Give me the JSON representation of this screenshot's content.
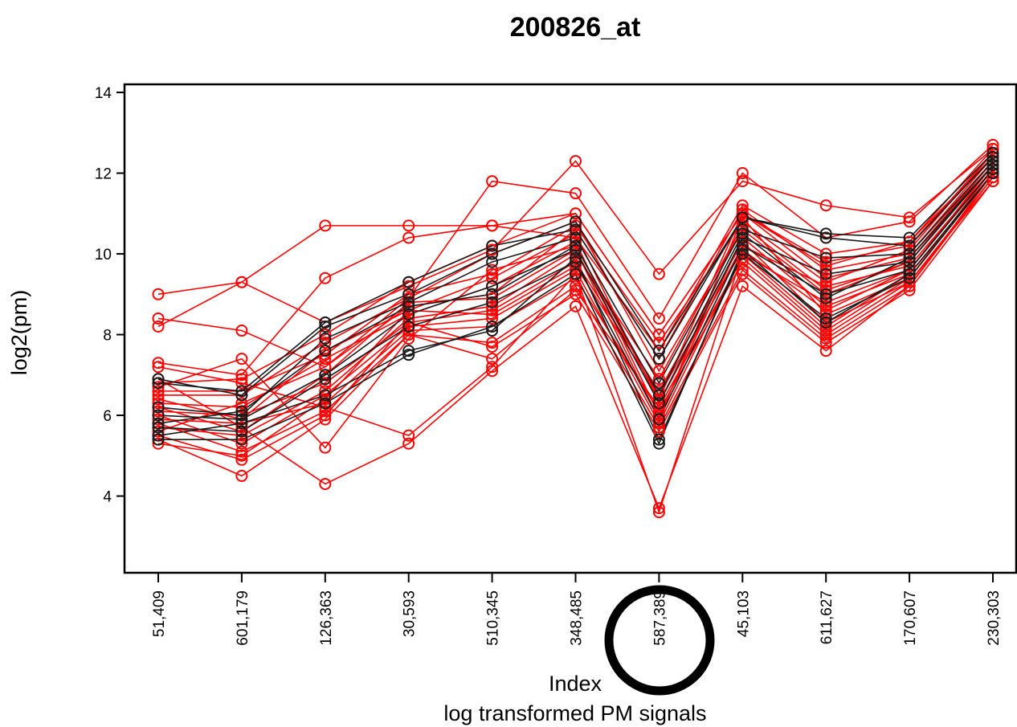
{
  "chart_data": {
    "type": "line",
    "title": "200826_at",
    "xlabel": "Index",
    "xlabel_sub": "log transformed PM signals",
    "ylabel": "log2(pm)",
    "ylim": [
      2.1,
      14.2
    ],
    "yticks": [
      4,
      6,
      8,
      10,
      12,
      14
    ],
    "categories": [
      "51,409",
      "601,179",
      "126,363",
      "30,593",
      "510,345",
      "348,485",
      "587,389",
      "45,103",
      "611,627",
      "170,607",
      "230,303"
    ],
    "highlighted_category": "587,389",
    "marker": "open-circle",
    "series_groups": [
      {
        "group": "red",
        "color": "#ff0000",
        "series": [
          {
            "values": [
              9.0,
              9.3,
              8.3,
              9.2,
              10.1,
              12.3,
              9.5,
              11.8,
              11.2,
              10.9,
              12.6
            ]
          },
          {
            "values": [
              8.4,
              8.1,
              7.2,
              8.9,
              11.8,
              11.5,
              8.4,
              12.0,
              10.4,
              10.8,
              12.7
            ]
          },
          {
            "values": [
              8.2,
              9.3,
              10.7,
              10.7,
              10.7,
              11.0,
              8.0,
              11.0,
              9.8,
              10.2,
              12.5
            ]
          },
          {
            "values": [
              7.3,
              7.0,
              9.4,
              10.4,
              10.7,
              10.4,
              7.6,
              11.2,
              10.0,
              10.3,
              12.4
            ]
          },
          {
            "values": [
              7.2,
              6.8,
              6.2,
              5.5,
              7.2,
              9.5,
              3.6,
              10.0,
              8.8,
              9.6,
              12.2
            ]
          },
          {
            "values": [
              6.9,
              5.7,
              4.3,
              5.3,
              7.1,
              8.7,
              3.7,
              9.2,
              7.6,
              9.2,
              12.0
            ]
          },
          {
            "values": [
              6.7,
              7.4,
              5.2,
              7.9,
              9.6,
              10.2,
              6.4,
              11.0,
              9.4,
              9.9,
              12.3
            ]
          },
          {
            "values": [
              6.5,
              6.5,
              7.8,
              8.9,
              10.0,
              10.8,
              7.1,
              10.6,
              9.0,
              9.8,
              12.2
            ]
          },
          {
            "values": [
              6.4,
              5.9,
              7.6,
              8.6,
              9.4,
              10.5,
              6.3,
              10.2,
              9.2,
              9.7,
              12.1
            ]
          },
          {
            "values": [
              6.3,
              6.2,
              7.4,
              8.5,
              9.2,
              10.3,
              6.0,
              10.4,
              8.7,
              9.5,
              12.0
            ]
          },
          {
            "values": [
              6.2,
              5.6,
              7.0,
              8.8,
              8.9,
              10.1,
              5.9,
              10.9,
              8.5,
              9.4,
              12.1
            ]
          },
          {
            "values": [
              6.1,
              6.0,
              6.8,
              8.3,
              8.6,
              9.8,
              6.6,
              10.3,
              8.3,
              9.3,
              11.9
            ]
          },
          {
            "values": [
              6.0,
              5.3,
              6.5,
              8.2,
              8.4,
              9.6,
              5.8,
              10.0,
              8.2,
              9.5,
              12.0
            ]
          },
          {
            "values": [
              5.9,
              5.8,
              6.3,
              8.1,
              8.2,
              9.4,
              6.1,
              9.8,
              8.0,
              9.3,
              11.8
            ]
          },
          {
            "values": [
              5.8,
              5.1,
              6.1,
              8.0,
              7.8,
              9.2,
              5.7,
              9.6,
              7.9,
              9.2,
              11.9
            ]
          },
          {
            "values": [
              5.7,
              5.5,
              6.6,
              8.4,
              8.7,
              10.0,
              6.9,
              10.7,
              9.1,
              9.8,
              12.3
            ]
          },
          {
            "values": [
              5.6,
              6.3,
              7.2,
              8.7,
              9.0,
              10.6,
              7.4,
              11.1,
              9.6,
              10.0,
              12.4
            ]
          },
          {
            "values": [
              5.5,
              4.9,
              6.0,
              8.3,
              7.7,
              9.0,
              5.6,
              9.5,
              7.8,
              9.1,
              11.8
            ]
          },
          {
            "values": [
              5.4,
              4.5,
              5.9,
              8.0,
              7.4,
              9.1,
              6.2,
              9.9,
              8.1,
              9.4,
              12.0
            ]
          },
          {
            "values": [
              5.3,
              5.0,
              6.4,
              8.6,
              8.5,
              9.7,
              6.5,
              10.1,
              8.6,
              9.6,
              12.1
            ]
          },
          {
            "values": [
              6.6,
              6.6,
              7.5,
              9.0,
              9.5,
              10.7,
              7.8,
              10.8,
              9.3,
              10.1,
              12.5
            ]
          },
          {
            "values": [
              6.8,
              6.9,
              8.0,
              9.3,
              10.2,
              11.0,
              8.0,
              11.0,
              9.7,
              10.3,
              12.6
            ]
          }
        ]
      },
      {
        "group": "black",
        "color": "#1a1a1a",
        "series": [
          {
            "values": [
              6.9,
              6.5,
              8.2,
              9.0,
              10.0,
              10.8,
              7.6,
              10.9,
              10.4,
              10.2,
              12.4
            ]
          },
          {
            "values": [
              6.8,
              6.6,
              8.3,
              9.3,
              10.2,
              10.6,
              7.4,
              10.9,
              10.5,
              10.4,
              12.5
            ]
          },
          {
            "values": [
              6.2,
              6.0,
              7.9,
              8.8,
              9.8,
              10.4,
              6.8,
              10.6,
              9.9,
              10.0,
              12.3
            ]
          },
          {
            "values": [
              6.0,
              5.9,
              7.0,
              8.5,
              9.2,
              10.1,
              6.3,
              10.4,
              9.5,
              9.8,
              12.2
            ]
          },
          {
            "values": [
              5.7,
              5.6,
              6.9,
              8.2,
              8.8,
              9.8,
              5.9,
              10.2,
              9.0,
              9.6,
              12.1
            ]
          },
          {
            "values": [
              5.5,
              5.8,
              6.5,
              7.6,
              8.1,
              9.9,
              5.4,
              10.0,
              8.4,
              9.4,
              12.0
            ]
          },
          {
            "values": [
              5.4,
              5.4,
              6.3,
              7.5,
              8.2,
              9.5,
              5.3,
              10.1,
              8.3,
              9.5,
              12.0
            ]
          },
          {
            "values": [
              5.8,
              6.1,
              7.6,
              8.7,
              9.0,
              10.2,
              6.5,
              10.5,
              8.9,
              9.9,
              12.2
            ]
          }
        ]
      }
    ]
  }
}
